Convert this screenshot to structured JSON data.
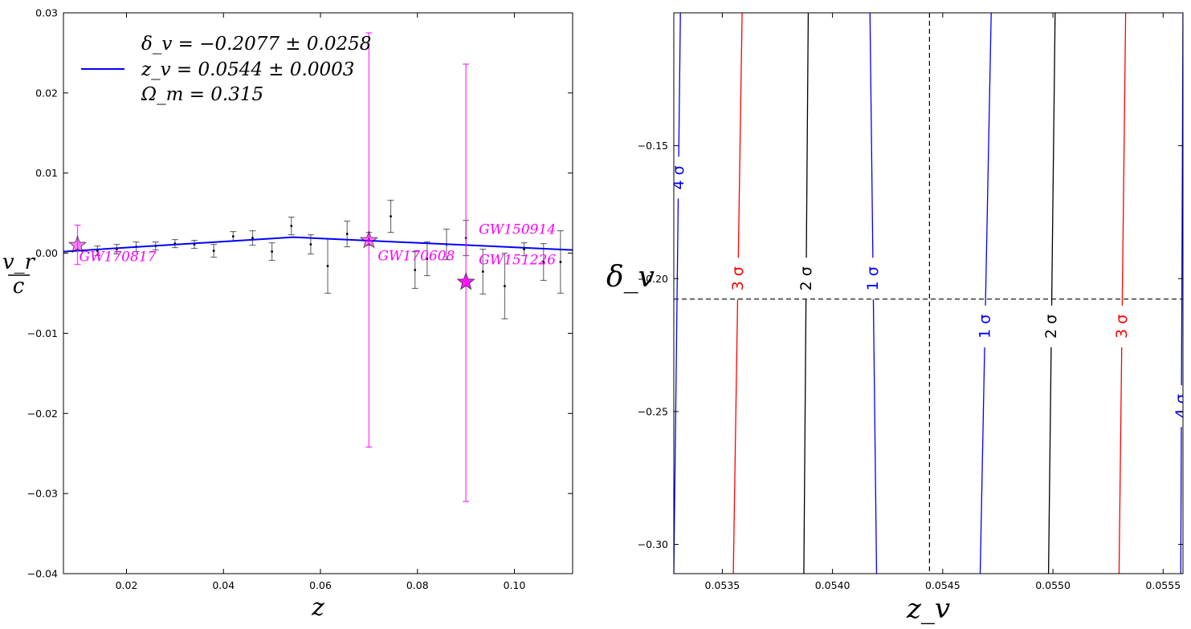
{
  "chart_data": [
    {
      "type": "scatter",
      "xlabel": "z",
      "ylabel_numerator": "v_r",
      "ylabel_denominator": "c",
      "xlim": [
        0.007,
        0.112
      ],
      "ylim": [
        -0.04,
        0.03
      ],
      "xticks": [
        0.02,
        0.04,
        0.06,
        0.08,
        0.1
      ],
      "xtick_labels": [
        "0.02",
        "0.04",
        "0.06",
        "0.08",
        "0.10"
      ],
      "yticks": [
        -0.04,
        -0.03,
        -0.02,
        -0.01,
        0.0,
        0.01,
        0.02,
        0.03
      ],
      "ytick_labels": [
        "−0.04",
        "−0.03",
        "−0.02",
        "−0.01",
        "0.00",
        "0.01",
        "0.02",
        "0.03"
      ],
      "legend": {
        "position": "top-left",
        "lines": [
          "δ_v = −0.2077 ± 0.0258",
          "z_v = 0.0544 ± 0.0003",
          "Ω_m = 0.315"
        ]
      },
      "model_line": {
        "color": "#0000ff",
        "x": [
          0.007,
          0.0544,
          0.112
        ],
        "y": [
          0.0002,
          0.002,
          0.0004
        ]
      },
      "points": {
        "color": "#000000",
        "x": [
          0.014,
          0.018,
          0.022,
          0.026,
          0.03,
          0.034,
          0.038,
          0.042,
          0.046,
          0.05,
          0.054,
          0.058,
          0.0615,
          0.0655,
          0.07,
          0.0745,
          0.0795,
          0.082,
          0.086,
          0.09,
          0.0935,
          0.098,
          0.102,
          0.106,
          0.1095
        ],
        "y": [
          0.0003,
          0.0005,
          0.0008,
          0.0009,
          0.0012,
          0.0011,
          0.0003,
          0.0021,
          0.0019,
          0.0002,
          0.0034,
          0.0011,
          -0.0016,
          0.0024,
          0.0018,
          0.0046,
          -0.0021,
          -0.0007,
          0.0011,
          0.0019,
          -0.0023,
          -0.0041,
          0.0005,
          -0.0011,
          -0.0011
        ],
        "err": [
          0.0006,
          0.0006,
          0.0006,
          0.0005,
          0.0005,
          0.0005,
          0.0008,
          0.0006,
          0.0009,
          0.0011,
          0.0011,
          0.0012,
          0.0034,
          0.0016,
          0.0008,
          0.002,
          0.0023,
          0.0021,
          0.0019,
          0.0022,
          0.0028,
          0.0041,
          0.0008,
          0.0023,
          0.0039
        ]
      },
      "gw_events": [
        {
          "name": "GW170817",
          "x": 0.0099,
          "y": 0.001,
          "err_low": 0.0024,
          "err_high": 0.0025
        },
        {
          "name": "GW170608",
          "x": 0.07,
          "y": 0.0016,
          "err_low": 0.0258,
          "err_high": 0.0259
        },
        {
          "name": "GW151226",
          "x": 0.09,
          "y": -0.0036,
          "err_low": 0.0274,
          "err_high": 0.0272
        },
        {
          "name": "GW150914",
          "x": 0.09,
          "y": 0.0
        }
      ],
      "gw_color": "#ff00ff"
    },
    {
      "type": "contour",
      "xlabel": "z_v",
      "ylabel": "δ_v",
      "xlim": [
        0.05328,
        0.05559
      ],
      "ylim": [
        -0.311,
        -0.1
      ],
      "xticks": [
        0.0535,
        0.054,
        0.0545,
        0.055,
        0.0555
      ],
      "xtick_labels": [
        "0.0535",
        "0.0540",
        "0.0545",
        "0.0550",
        "0.0555"
      ],
      "yticks": [
        -0.15,
        -0.2,
        -0.25,
        -0.3
      ],
      "ytick_labels": [
        "−0.15",
        "−0.20",
        "−0.25",
        "−0.30"
      ],
      "best_fit": {
        "x": 0.05444,
        "y": -0.2077
      },
      "contours": [
        {
          "sigma": "1 σ",
          "color": "#0000ff",
          "x_top": 0.05417,
          "x_bottom": 0.0542
        },
        {
          "sigma": "2 σ",
          "color": "#000000",
          "x_top": 0.05389,
          "x_bottom": 0.05387
        },
        {
          "sigma": "3 σ",
          "color": "#ff0000",
          "x_top": 0.05359,
          "x_bottom": 0.05355
        },
        {
          "sigma": "4 σ",
          "color": "#0000ff",
          "x_top": 0.05331,
          "x_bottom": 0.05328
        },
        {
          "sigma": "1 σ",
          "color": "#0000ff",
          "x_top": 0.05472,
          "x_bottom": 0.05467
        },
        {
          "sigma": "2 σ",
          "color": "#000000",
          "x_top": 0.05501,
          "x_bottom": 0.05498
        },
        {
          "sigma": "3 σ",
          "color": "#ff0000",
          "x_top": 0.05533,
          "x_bottom": 0.0553
        },
        {
          "sigma": "4 σ",
          "color": "#0000ff",
          "x_top": 0.05559,
          "x_bottom": 0.05558
        }
      ]
    }
  ]
}
